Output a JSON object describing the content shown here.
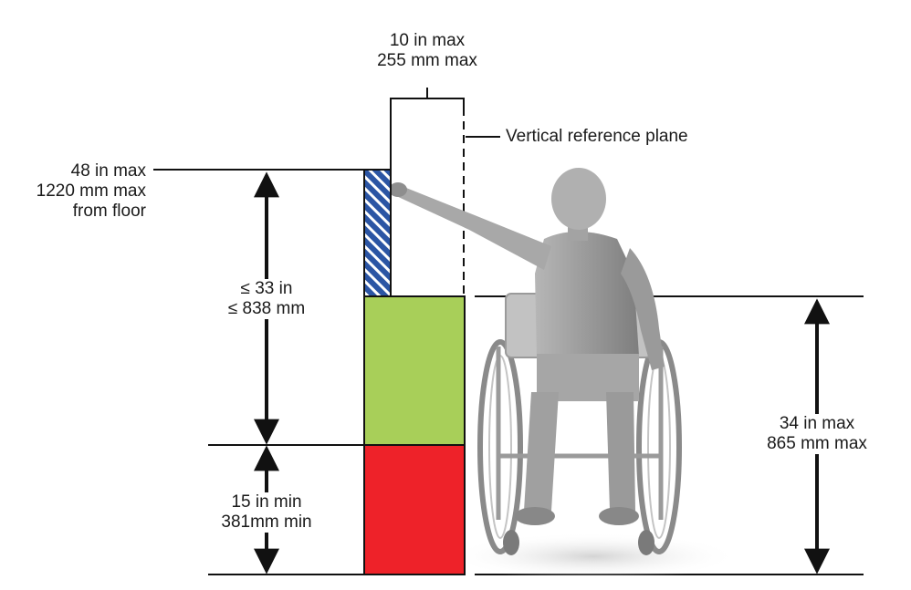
{
  "labels": {
    "depth_max": [
      "10 in max",
      "255 mm max"
    ],
    "reference_plane": "Vertical reference plane",
    "high_reach": [
      "48 in max",
      "1220 mm max",
      "from floor"
    ],
    "reach_range": [
      "≤ 33 in",
      "≤ 838 mm"
    ],
    "low_reach": [
      "15 in min",
      "381mm min"
    ],
    "obstruction_height": [
      "34 in max",
      "865 mm max"
    ]
  },
  "colors": {
    "hatch_fill": "#2b55a4",
    "obstruction_top": "#a8cf59",
    "obstruction_bottom": "#ee2229",
    "figure": "#9c9c9c",
    "line": "#111111"
  },
  "icons": {
    "person": "wheelchair-user-figure"
  }
}
